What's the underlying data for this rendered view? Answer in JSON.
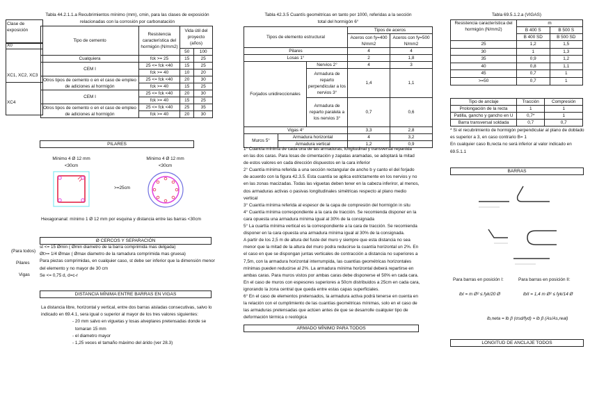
{
  "t1": {
    "title1": "Tabla 44.2.1.1.a Recubrimientos mínimo (mm), cmin, para las clases de exposición",
    "title2": "relacionadas con la corrosión por carbonatación",
    "h_clase": "Clase de exposición",
    "h_tipo": "Tipo de cemento",
    "h_res": "Resistencia característica del hormigón (N/mm2)",
    "h_vida": "Vida útil del proyecto (años)",
    "h_50": "50",
    "h_100": "100",
    "x0": "X0",
    "xc123": "XC1, XC2, XC3",
    "xc4": "XC4",
    "rows": [
      {
        "tipo": "Cualquiera",
        "res": "fck >= 25",
        "a": "15",
        "b": "25"
      },
      {
        "tipo": "CEM I",
        "res": "25 <= fck <40",
        "a": "15",
        "b": "25"
      },
      {
        "res": "fck >= 40",
        "a": "10",
        "b": "20"
      },
      {
        "tipo": "Otros tipos de cemento o en el caso de empleo de adiciones al hormigón",
        "res": "25 <= fck <40",
        "a": "20",
        "b": "30"
      },
      {
        "res": "fck >= 40",
        "a": "15",
        "b": "25"
      },
      {
        "tipo": "CEM I",
        "res": "25 <= fck <40",
        "a": "20",
        "b": "30"
      },
      {
        "res": "fck >= 40",
        "a": "15",
        "b": "25"
      },
      {
        "tipo": "Otros tipos de cemento o en el caso de empleo de adiciones al hormigón",
        "res": "25 <= fck <40",
        "a": "25",
        "b": "35"
      },
      {
        "res": "fck >= 40",
        "a": "20",
        "b": "30"
      }
    ]
  },
  "t2": {
    "title1": "Tabla 42.3.5 Cuantís geométricas en tanto por 1000, referidas a la sección",
    "title2": "total del hormigón 6°",
    "h_tipos": "Tipos de elemento estructural",
    "h_aceros": "Tipos de aceros",
    "h_400": "Aceros con fy=400 N/mm2",
    "h_500": "Aceros con fy=500 N/mm2",
    "pilares": [
      "Pilares",
      "4",
      "4"
    ],
    "losas": [
      "Losas 1°",
      "2",
      "1,8"
    ],
    "forjados": "Forjados unidireccionales",
    "nervios": [
      "Nervios 2°",
      "4",
      "3"
    ],
    "perp": [
      "Armadura de reparto perpendicular a los nervios 3°",
      "1,4",
      "1,1"
    ],
    "par": [
      "Armadura de reparto paralela a los nervios 3°",
      "0,7",
      "0,6"
    ],
    "vigas": [
      "Vigas 4°",
      "3,3",
      "2,8"
    ],
    "muros": "Muros 5°",
    "horiz": [
      "Armadura horizontal",
      "4",
      "3,2"
    ],
    "vert": [
      "Armadura vertical",
      "1,2",
      "0,9"
    ]
  },
  "notes2": [
    "1° Cuantía mínima de cada una de las armaduras, longitudinal y transversal repartida",
    "en las dos caras. Para losas de cimentación y zapatas aramadas, se adoptará la mitad",
    "de estos valores en cada dirección dispuestos en la cara inferior",
    "2° Cuantía mínima referida a una sección rectangular de ancho b y canto el del forjado",
    "de acuerdo con la figura 42.3.5. Esta cuantía se aplica estrictamente en los nervios y no",
    "en las zonas macizadas. Todas las viguetas deben tener en la cabeza inferiror, al menos,",
    "dos armaduras activas o pasivas longitudinales simétricas respecto al plano medio",
    "vertical",
    "3° Cuantía mínima referida al espesor de la capa de compresión del hormigón in situ",
    "4° Cuantía mínima correspondiente a la cara de tracción. Se recomienda disponer en la",
    "cara opuesta una armadura mínima igual al 30% de la consignada",
    "5° La cuartía mínima vertical es la correspondiente a la cara de tracción. Se recomienda",
    "disponer en la cara opuesta una armadura mínima igual al 30% de la consignada.",
    "A partir de los 2,5 m de altura del fuste del muro y siempre que esta distancia no sea",
    "menor que la mitad de la altura del muro podra reducirse la cuantía horizontal un 2%. En",
    "el caso en que se dispongan juntas verticales de contracción a distancia no superiores a",
    "7,5m, con la armadura horizontal interrumpida, las cuantías geométricas horizontales",
    "mínimas pueden reducirse al 2%.  La armadura mínima horizontal deberá repartirse en",
    "ambas caras. Para muros vistos por ambas caras debe disponerse el 50% en cada cara.",
    "En el caso de muros con espesores superiores a 50cm distribuidos a 25cm en cada cara,",
    "ignorando la zona central que queda entre estas capas superficiales.",
    "6° En el caso de elementos pretensados, la armadura activa podrá tenerse en cuenta en",
    "la relación con el cumplimiento de las cuantías geométricas mínimas, solo en el caso de",
    "las armaduras pretensadas que actúen antes de que se desarrolle cualquier tipo de",
    "deformación térmica o reológica"
  ],
  "armado_title": "ARMADO MÍNIMO PARA TODOS",
  "t3": {
    "title": "Tabla 69.5.1.2.a (VIGAS)",
    "h_res": "Resistencia característica del hormigón (N/mm2)",
    "h_m": "m",
    "h_b400": "B 400 S",
    "h_b500": "B 500 S",
    "h_b400sd": "B 400 SD",
    "h_b500sd": "B 500 SD",
    "rows": [
      [
        "25",
        "1,2",
        "1,5"
      ],
      [
        "30",
        "1",
        "1,3"
      ],
      [
        "35",
        "0,9",
        "1,2"
      ],
      [
        "40",
        "0,8",
        "1,1"
      ],
      [
        "45",
        "0,7",
        "1"
      ],
      [
        ">=50",
        "0,7",
        "1"
      ]
    ]
  },
  "t4": {
    "h": [
      "Tipo de anclaje",
      "Tracción",
      "Compresión"
    ],
    "rows": [
      [
        "Prolongación de la recta",
        "1",
        "1"
      ],
      [
        "Patilla, gancho y gancho en U",
        "0,7*",
        "1"
      ],
      [
        "Barra transversal soldada",
        "0,7",
        "0,7"
      ]
    ],
    "notes": [
      "* Si el recubrimiento de hormigón perpendicular al plano de doblado",
      "es superior a 3, en caso contrario B= 1",
      " En cualquier caso lb,recta no será inferior al valor indicado en",
      "69.5.1.1"
    ]
  },
  "pilares": {
    "title": "PILARES",
    "left1": "Mínimo 4 Ø 12 mm",
    "left2": "<30cm",
    "right1": "Mínimo 4 Ø 12 mm",
    "right2": "<30cm",
    "mid": ">=25cm",
    "hex": "Hexagonanal: mínimo 1 Ø 12 mm por esquina y distancia entre las barras <30cm"
  },
  "cercos": {
    "title": "Ø CERCOS Y SEPARACIÓN",
    "para": "(Para todos)",
    "pilares": "Pilares",
    "vigas": "Vigas",
    "l1": "st <= 15  Ømin ( Ømin diametro de la barra comprimida mas delgada)",
    "l2": "Øt>= 1/4  Ømax ( Ømax diametro de la ramadura comprimida mas gruesa)",
    "l3": "Para piezas comprimidas, en cualquier caso, st debe ser inferior que la dimensión menor",
    "l4": "del elemento y no mayor de 30 cm",
    "l5": "Se <= 0,75 d, d=c-r"
  },
  "dist": {
    "title": "DISTANCIA MÍNIMA ENTRE BARRAS EN VIGAS",
    "l1": "La distancia libre, horizontal y vertical, entre dos barras aisladas consecutivas, salvo lo",
    "l2": "indicado en 69.4.1, sera igual o superior al mayor de los tres valores siguientes:",
    "b1": "- 20 mm salvo en viguetas y losas alveplares pretensadas donde se",
    "b1b": "tomaran 15 mm",
    "b2": "- el diametro mayor",
    "b3": "- 1,25 veces el tamaño máximo del árido (ver 28.3)"
  },
  "barras": {
    "title": "BARRAS",
    "pos1": "Para barras en posición I:",
    "pos2": "Para barras en posición II:",
    "f1": "lbI = m Ø² ≤ fyk/20 Ø",
    "f2": "lbII = 1,4 m Ø² ≤ fyk/14 Ø",
    "f3": "lb,neta = lb β (σsd/fyd) ≈ lb β (As/As,real)"
  },
  "longitud_title": "LONGITUD DE ANCLAJE TODOS",
  "colors": {
    "rebar": "#e8506a",
    "stirrup_circle": "#e040e0",
    "outer_circle": "#7070e0",
    "outer_square": "#80e8f0"
  }
}
